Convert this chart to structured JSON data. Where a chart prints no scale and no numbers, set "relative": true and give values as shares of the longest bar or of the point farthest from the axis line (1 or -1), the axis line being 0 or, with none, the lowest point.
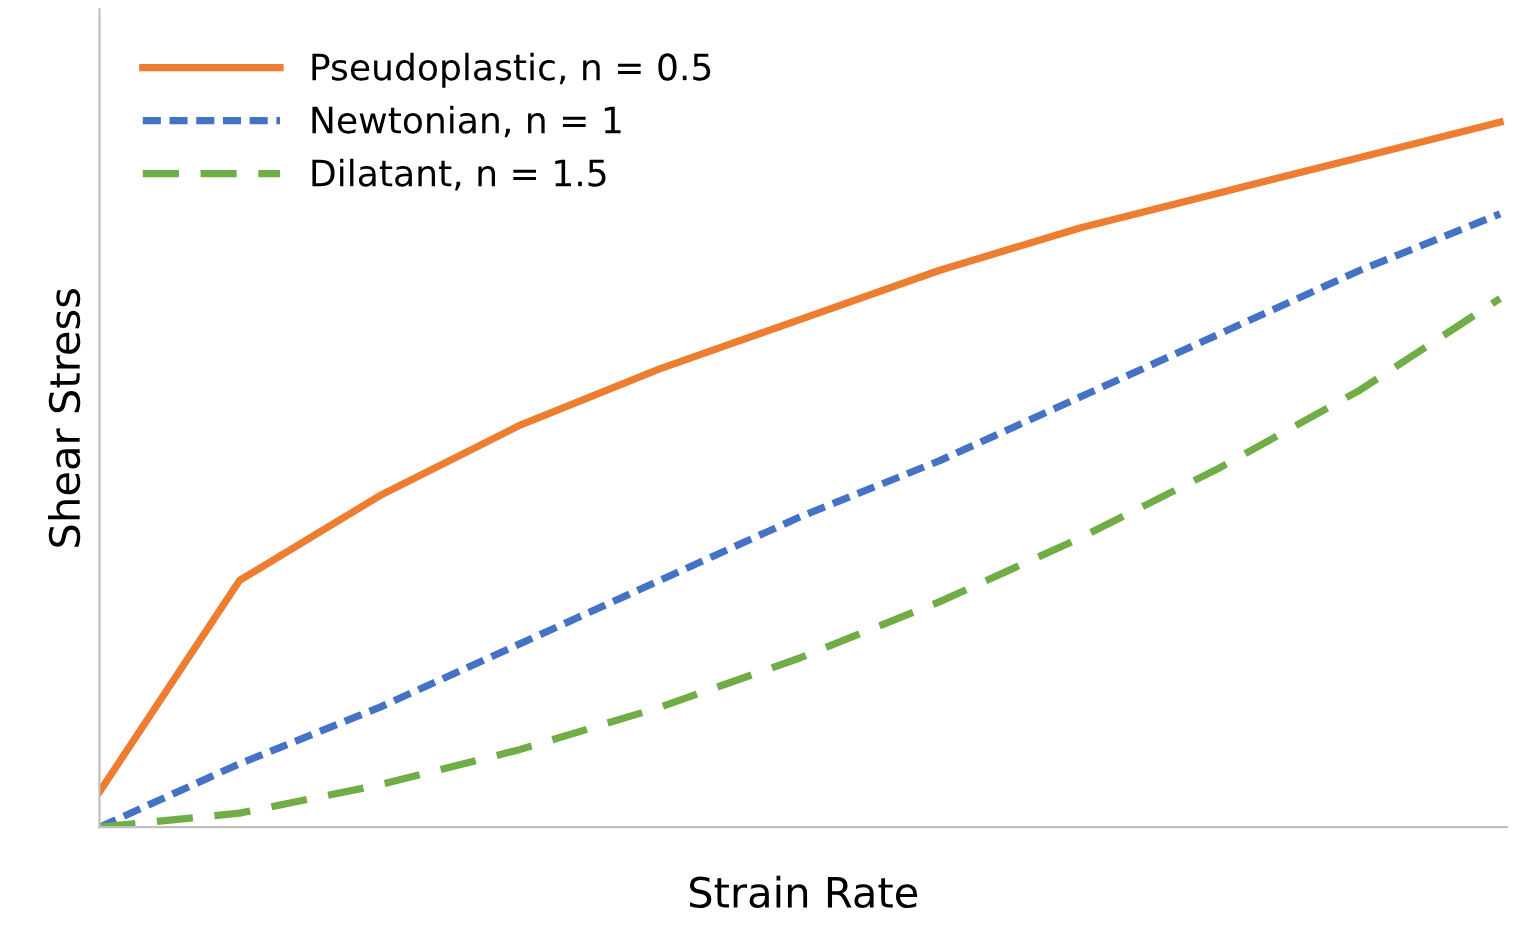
{
  "chart_data": {
    "type": "line",
    "relative": true,
    "xlabel": "Strain Rate",
    "ylabel": "Shear Stress",
    "categories": [
      null,
      null,
      null,
      null,
      null,
      null,
      null,
      null,
      null,
      null,
      null
    ],
    "series": [
      {
        "name": "Pseudoplastic, n = 0.5",
        "color": "#ed7d31",
        "line_style": "solid",
        "values": [
          0.05,
          0.35,
          0.47,
          0.57,
          0.65,
          0.72,
          0.79,
          0.85,
          0.9,
          0.95,
          1.0
        ]
      },
      {
        "name": "Newtonian, n = 1",
        "color": "#4472c4",
        "line_style": "dotted",
        "values": [
          0,
          0.09,
          0.17,
          0.26,
          0.35,
          0.44,
          0.52,
          0.61,
          0.7,
          0.79,
          0.87
        ]
      },
      {
        "name": "Dilatant, n = 1.5",
        "color": "#70ad47",
        "line_style": "dashed",
        "values": [
          0,
          0.02,
          0.06,
          0.11,
          0.17,
          0.24,
          0.32,
          0.41,
          0.51,
          0.62,
          0.75
        ]
      }
    ],
    "legend": "top left",
    "grid": false,
    "marker": "none"
  }
}
